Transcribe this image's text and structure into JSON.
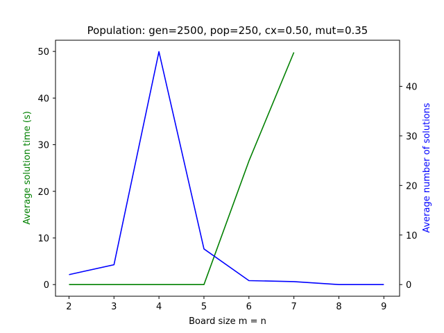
{
  "chart_data": {
    "type": "line",
    "title": "Population: gen=2500, pop=250, cx=0.50, mut=0.35",
    "xlabel": "Board size m = n",
    "ylabel_left": "Average solution time (s)",
    "ylabel_right": "Average number of solutions",
    "x_ticks": [
      "2",
      "3",
      "4",
      "5",
      "6",
      "7",
      "8",
      "9"
    ],
    "y_left_ticks": [
      "0",
      "10",
      "20",
      "30",
      "40",
      "50"
    ],
    "y_right_ticks": [
      "0",
      "10",
      "20",
      "30",
      "40"
    ],
    "xlim": [
      1.7,
      9.35
    ],
    "ylim_left": [
      -2.5,
      52.4
    ],
    "ylim_right": [
      -2.35,
      49.3
    ],
    "grid": false,
    "series": [
      {
        "axis": "left",
        "color": "#008000",
        "x": [
          2,
          3,
          4,
          5,
          6,
          7
        ],
        "y": [
          0,
          0,
          0,
          0,
          26.5,
          49.8
        ]
      },
      {
        "axis": "right",
        "color": "#0000ff",
        "x": [
          2,
          3,
          4,
          5,
          6,
          7,
          8,
          9
        ],
        "y": [
          2,
          4,
          47,
          7.2,
          0.8,
          0.6,
          0,
          0
        ]
      }
    ]
  }
}
